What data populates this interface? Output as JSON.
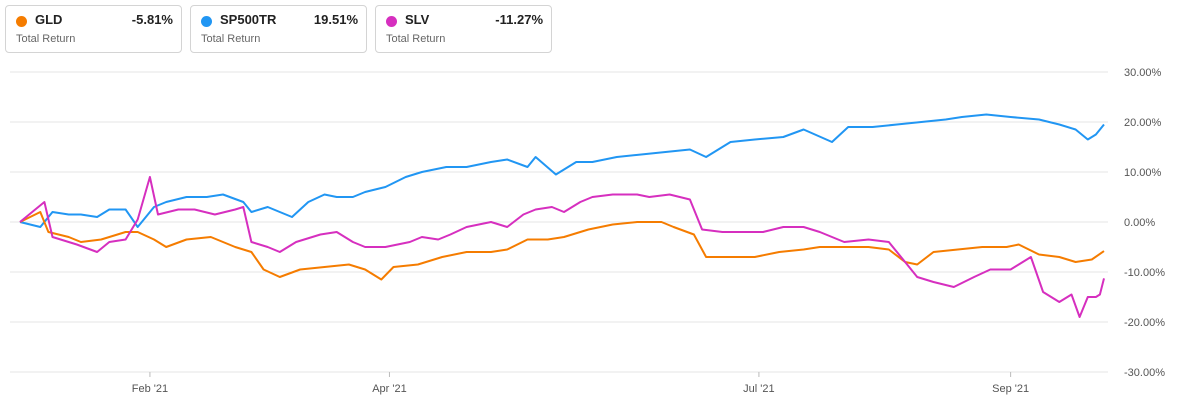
{
  "legend": [
    {
      "name": "GLD",
      "value": "-5.81%",
      "sub": "Total Return",
      "color": "#f57c00"
    },
    {
      "name": "SP500TR",
      "value": "19.51%",
      "sub": "Total Return",
      "color": "#2196f3"
    },
    {
      "name": "SLV",
      "value": "-11.27%",
      "sub": "Total Return",
      "color": "#d62fbf"
    }
  ],
  "chart_data": {
    "type": "line",
    "ylim": [
      -30,
      30
    ],
    "yticks": [
      30,
      20,
      10,
      0,
      -10,
      -20,
      -30
    ],
    "ytick_labels": [
      "30.00%",
      "20.00%",
      "10.00%",
      "0.00%",
      "-10.00%",
      "-20.00%",
      "-30.00%"
    ],
    "xlim": [
      "2020-12-31",
      "2021-09-24"
    ],
    "xticks": [
      "2021-02-01",
      "2021-04-01",
      "2021-07-01",
      "2021-09-01"
    ],
    "xtick_labels": [
      "Feb '21",
      "Apr '21",
      "Jul '21",
      "Sep '21"
    ],
    "grid": true,
    "series": [
      {
        "name": "SP500TR",
        "color": "#2196f3",
        "points": [
          [
            "2020-12-31",
            0
          ],
          [
            "2021-01-05",
            -1
          ],
          [
            "2021-01-08",
            2
          ],
          [
            "2021-01-12",
            1.5
          ],
          [
            "2021-01-15",
            1.5
          ],
          [
            "2021-01-19",
            1
          ],
          [
            "2021-01-22",
            2.5
          ],
          [
            "2021-01-26",
            2.5
          ],
          [
            "2021-01-29",
            -1
          ],
          [
            "2021-02-02",
            3
          ],
          [
            "2021-02-05",
            4
          ],
          [
            "2021-02-10",
            5
          ],
          [
            "2021-02-15",
            5
          ],
          [
            "2021-02-19",
            5.5
          ],
          [
            "2021-02-24",
            4
          ],
          [
            "2021-02-26",
            2
          ],
          [
            "2021-03-02",
            3
          ],
          [
            "2021-03-05",
            2
          ],
          [
            "2021-03-08",
            1
          ],
          [
            "2021-03-12",
            4
          ],
          [
            "2021-03-16",
            5.5
          ],
          [
            "2021-03-19",
            5
          ],
          [
            "2021-03-23",
            5
          ],
          [
            "2021-03-26",
            6
          ],
          [
            "2021-03-31",
            7
          ],
          [
            "2021-04-05",
            9
          ],
          [
            "2021-04-09",
            10
          ],
          [
            "2021-04-15",
            11
          ],
          [
            "2021-04-20",
            11
          ],
          [
            "2021-04-26",
            12
          ],
          [
            "2021-04-30",
            12.5
          ],
          [
            "2021-05-05",
            11
          ],
          [
            "2021-05-07",
            13
          ],
          [
            "2021-05-12",
            9.5
          ],
          [
            "2021-05-17",
            12
          ],
          [
            "2021-05-21",
            12
          ],
          [
            "2021-05-27",
            13
          ],
          [
            "2021-06-02",
            13.5
          ],
          [
            "2021-06-08",
            14
          ],
          [
            "2021-06-14",
            14.5
          ],
          [
            "2021-06-18",
            13
          ],
          [
            "2021-06-24",
            16
          ],
          [
            "2021-06-30",
            16.5
          ],
          [
            "2021-07-07",
            17
          ],
          [
            "2021-07-12",
            18.5
          ],
          [
            "2021-07-19",
            16
          ],
          [
            "2021-07-23",
            19
          ],
          [
            "2021-07-29",
            19
          ],
          [
            "2021-08-04",
            19.5
          ],
          [
            "2021-08-10",
            20
          ],
          [
            "2021-08-16",
            20.5
          ],
          [
            "2021-08-20",
            21
          ],
          [
            "2021-08-26",
            21.5
          ],
          [
            "2021-09-01",
            21
          ],
          [
            "2021-09-08",
            20.5
          ],
          [
            "2021-09-13",
            19.5
          ],
          [
            "2021-09-17",
            18.5
          ],
          [
            "2021-09-20",
            16.5
          ],
          [
            "2021-09-22",
            17.5
          ],
          [
            "2021-09-24",
            19.5
          ]
        ]
      },
      {
        "name": "GLD",
        "color": "#f57c00",
        "points": [
          [
            "2020-12-31",
            0
          ],
          [
            "2021-01-05",
            2
          ],
          [
            "2021-01-07",
            -2
          ],
          [
            "2021-01-12",
            -3
          ],
          [
            "2021-01-15",
            -4
          ],
          [
            "2021-01-20",
            -3.5
          ],
          [
            "2021-01-26",
            -2
          ],
          [
            "2021-01-29",
            -2
          ],
          [
            "2021-02-02",
            -3.5
          ],
          [
            "2021-02-05",
            -5
          ],
          [
            "2021-02-10",
            -3.5
          ],
          [
            "2021-02-16",
            -3
          ],
          [
            "2021-02-22",
            -5
          ],
          [
            "2021-02-26",
            -6
          ],
          [
            "2021-03-01",
            -9.5
          ],
          [
            "2021-03-05",
            -11
          ],
          [
            "2021-03-10",
            -9.5
          ],
          [
            "2021-03-16",
            -9
          ],
          [
            "2021-03-22",
            -8.5
          ],
          [
            "2021-03-26",
            -9.5
          ],
          [
            "2021-03-30",
            -11.5
          ],
          [
            "2021-04-02",
            -9
          ],
          [
            "2021-04-08",
            -8.5
          ],
          [
            "2021-04-14",
            -7
          ],
          [
            "2021-04-20",
            -6
          ],
          [
            "2021-04-26",
            -6
          ],
          [
            "2021-04-30",
            -5.5
          ],
          [
            "2021-05-05",
            -3.5
          ],
          [
            "2021-05-10",
            -3.5
          ],
          [
            "2021-05-14",
            -3
          ],
          [
            "2021-05-20",
            -1.5
          ],
          [
            "2021-05-26",
            -0.5
          ],
          [
            "2021-06-01",
            0
          ],
          [
            "2021-06-07",
            0
          ],
          [
            "2021-06-10",
            -1
          ],
          [
            "2021-06-15",
            -2.5
          ],
          [
            "2021-06-18",
            -7
          ],
          [
            "2021-06-24",
            -7
          ],
          [
            "2021-06-30",
            -7
          ],
          [
            "2021-07-06",
            -6
          ],
          [
            "2021-07-12",
            -5.5
          ],
          [
            "2021-07-16",
            -5
          ],
          [
            "2021-07-22",
            -5
          ],
          [
            "2021-07-28",
            -5
          ],
          [
            "2021-08-02",
            -5.5
          ],
          [
            "2021-08-06",
            -8
          ],
          [
            "2021-08-09",
            -8.5
          ],
          [
            "2021-08-13",
            -6
          ],
          [
            "2021-08-19",
            -5.5
          ],
          [
            "2021-08-25",
            -5
          ],
          [
            "2021-08-31",
            -5
          ],
          [
            "2021-09-03",
            -4.5
          ],
          [
            "2021-09-08",
            -6.5
          ],
          [
            "2021-09-13",
            -7
          ],
          [
            "2021-09-17",
            -8
          ],
          [
            "2021-09-21",
            -7.5
          ],
          [
            "2021-09-24",
            -5.81
          ]
        ]
      },
      {
        "name": "SLV",
        "color": "#d62fbf",
        "points": [
          [
            "2020-12-31",
            0
          ],
          [
            "2021-01-06",
            4
          ],
          [
            "2021-01-08",
            -3
          ],
          [
            "2021-01-12",
            -4
          ],
          [
            "2021-01-14",
            -4.5
          ],
          [
            "2021-01-19",
            -6
          ],
          [
            "2021-01-22",
            -4
          ],
          [
            "2021-01-26",
            -3.5
          ],
          [
            "2021-01-29",
            0.5
          ],
          [
            "2021-02-01",
            9
          ],
          [
            "2021-02-03",
            1.5
          ],
          [
            "2021-02-08",
            2.5
          ],
          [
            "2021-02-12",
            2.5
          ],
          [
            "2021-02-17",
            1.5
          ],
          [
            "2021-02-22",
            2.5
          ],
          [
            "2021-02-24",
            3
          ],
          [
            "2021-02-26",
            -4
          ],
          [
            "2021-03-02",
            -5
          ],
          [
            "2021-03-05",
            -6
          ],
          [
            "2021-03-09",
            -4
          ],
          [
            "2021-03-15",
            -2.5
          ],
          [
            "2021-03-19",
            -2
          ],
          [
            "2021-03-23",
            -4
          ],
          [
            "2021-03-26",
            -5
          ],
          [
            "2021-03-31",
            -5
          ],
          [
            "2021-04-06",
            -4
          ],
          [
            "2021-04-09",
            -3
          ],
          [
            "2021-04-13",
            -3.5
          ],
          [
            "2021-04-16",
            -2.5
          ],
          [
            "2021-04-20",
            -1
          ],
          [
            "2021-04-26",
            0
          ],
          [
            "2021-04-30",
            -1
          ],
          [
            "2021-05-04",
            1.5
          ],
          [
            "2021-05-07",
            2.5
          ],
          [
            "2021-05-11",
            3
          ],
          [
            "2021-05-14",
            2
          ],
          [
            "2021-05-18",
            4
          ],
          [
            "2021-05-21",
            5
          ],
          [
            "2021-05-26",
            5.5
          ],
          [
            "2021-06-01",
            5.5
          ],
          [
            "2021-06-04",
            5
          ],
          [
            "2021-06-09",
            5.5
          ],
          [
            "2021-06-14",
            4.5
          ],
          [
            "2021-06-17",
            -1.5
          ],
          [
            "2021-06-22",
            -2
          ],
          [
            "2021-06-28",
            -2
          ],
          [
            "2021-07-02",
            -2
          ],
          [
            "2021-07-07",
            -1
          ],
          [
            "2021-07-12",
            -1
          ],
          [
            "2021-07-16",
            -2
          ],
          [
            "2021-07-22",
            -4
          ],
          [
            "2021-07-28",
            -3.5
          ],
          [
            "2021-08-02",
            -4
          ],
          [
            "2021-08-06",
            -8
          ],
          [
            "2021-08-09",
            -11
          ],
          [
            "2021-08-13",
            -12
          ],
          [
            "2021-08-18",
            -13
          ],
          [
            "2021-08-23",
            -11
          ],
          [
            "2021-08-27",
            -9.5
          ],
          [
            "2021-09-01",
            -9.5
          ],
          [
            "2021-09-06",
            -7
          ],
          [
            "2021-09-09",
            -14
          ],
          [
            "2021-09-13",
            -16
          ],
          [
            "2021-09-16",
            -14.5
          ],
          [
            "2021-09-18",
            -19
          ],
          [
            "2021-09-20",
            -15
          ],
          [
            "2021-09-22",
            -15
          ],
          [
            "2021-09-23",
            -14.5
          ],
          [
            "2021-09-24",
            -11.27
          ]
        ]
      }
    ]
  }
}
